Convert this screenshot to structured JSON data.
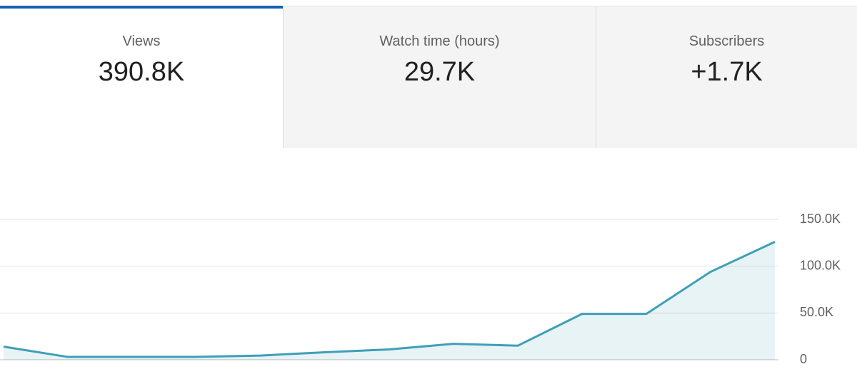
{
  "tabs": [
    {
      "label": "Views",
      "value": "390.8K"
    },
    {
      "label": "Watch time (hours)",
      "value": "29.7K"
    },
    {
      "label": "Subscribers",
      "value": "+1.7K"
    }
  ],
  "selected_tab": 0,
  "chart_data": {
    "type": "line",
    "series": [
      {
        "color": "#3f9fb8",
        "values": [
          14000,
          3000,
          3000,
          3000,
          4500,
          8000,
          11000,
          17000,
          15000,
          49000,
          49000,
          94000,
          126000
        ]
      }
    ],
    "ylim": [
      0,
      150000
    ],
    "yticks": [
      0,
      {
        "value": 50000,
        "label": "50.0K"
      },
      {
        "value": 100000,
        "label": "100.0K"
      },
      {
        "value": 150000,
        "label": "150.0K"
      }
    ],
    "grid": true
  }
}
